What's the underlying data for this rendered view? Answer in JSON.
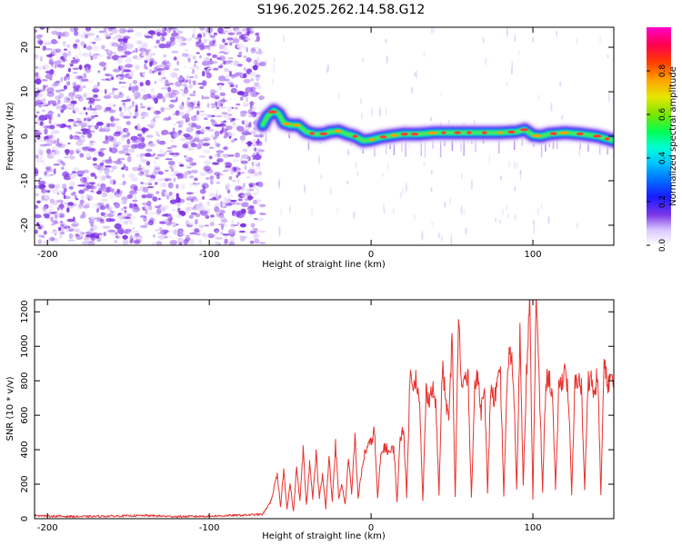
{
  "figure": {
    "title": "S196.2025.262.14.58.G12"
  },
  "chart_data": [
    {
      "type": "heatmap",
      "name": "spectrogram",
      "xlabel": "Height of straight line (km)",
      "ylabel": "Frequency (Hz)",
      "xlim": [
        -208,
        150
      ],
      "ylim": [
        -24.5,
        24.5
      ],
      "xticks": [
        -200,
        -100,
        0,
        100
      ],
      "yticks": [
        -20,
        -10,
        0,
        10,
        20
      ],
      "noise_region_km": [
        -208,
        -67
      ],
      "ridge": {
        "x": [
          -67,
          -64,
          -60,
          -57,
          -54,
          -50,
          -45,
          -40,
          -35,
          -30,
          -25,
          -20,
          -15,
          -10,
          -5,
          0,
          5,
          10,
          20,
          30,
          40,
          50,
          60,
          70,
          80,
          90,
          95,
          100,
          105,
          110,
          120,
          130,
          140,
          150
        ],
        "frequency_hz": [
          2.5,
          4.5,
          5.8,
          5.0,
          3.0,
          2.5,
          2.5,
          1.0,
          0.5,
          0.5,
          1.0,
          1.2,
          0.5,
          0.0,
          -1.0,
          -0.8,
          -0.3,
          0.0,
          0.5,
          0.5,
          0.8,
          0.8,
          0.8,
          0.8,
          0.8,
          1.0,
          1.5,
          0.2,
          0.0,
          0.5,
          0.8,
          0.5,
          0.0,
          -1.0
        ]
      },
      "colorbar": {
        "label": "Normalized spectral amplitude",
        "range": [
          0.0,
          1.0
        ],
        "ticks": [
          "0.0",
          "0.2",
          "0.4",
          "0.6",
          "0.8"
        ]
      }
    },
    {
      "type": "line",
      "name": "snr",
      "xlabel": "Height of straight line (km)",
      "ylabel": "SNR (10 * v/v)",
      "xlim": [
        -208,
        150
      ],
      "ylim": [
        0,
        1270
      ],
      "xticks": [
        -200,
        -100,
        0,
        100
      ],
      "yticks": [
        0,
        200,
        400,
        600,
        800,
        1000,
        1200
      ],
      "color": "#e8322e",
      "series": [
        {
          "name": "SNR",
          "x": [
            -208,
            -200,
            -180,
            -160,
            -140,
            -120,
            -100,
            -80,
            -67,
            -62,
            -58,
            -56,
            -54,
            -52,
            -50,
            -48,
            -46,
            -44,
            -42,
            -40,
            -38,
            -36,
            -34,
            -32,
            -30,
            -28,
            -26,
            -24,
            -22,
            -20,
            -18,
            -16,
            -14,
            -12,
            -10,
            -8,
            -6,
            -4,
            -2,
            0,
            2,
            4,
            6,
            8,
            10,
            12,
            14,
            16,
            18,
            20,
            22,
            24,
            26,
            28,
            30,
            32,
            34,
            36,
            38,
            40,
            42,
            44,
            46,
            48,
            50,
            52,
            54,
            56,
            58,
            60,
            62,
            64,
            66,
            68,
            70,
            72,
            74,
            76,
            78,
            80,
            82,
            84,
            86,
            88,
            90,
            92,
            94,
            96,
            98,
            100,
            102,
            104,
            106,
            108,
            110,
            112,
            114,
            116,
            118,
            120,
            122,
            124,
            126,
            128,
            130,
            132,
            134,
            136,
            138,
            140,
            142,
            144,
            146,
            148,
            150
          ],
          "y": [
            20,
            15,
            12,
            15,
            18,
            12,
            15,
            20,
            25,
            100,
            250,
            70,
            280,
            60,
            200,
            40,
            300,
            100,
            400,
            80,
            320,
            120,
            380,
            120,
            250,
            60,
            360,
            100,
            440,
            120,
            200,
            80,
            340,
            140,
            480,
            120,
            260,
            380,
            420,
            440,
            520,
            120,
            360,
            420,
            400,
            380,
            420,
            100,
            460,
            540,
            120,
            820,
            800,
            820,
            640,
            100,
            740,
            700,
            760,
            660,
            140,
            880,
            700,
            560,
            1060,
            120,
            1180,
            740,
            820,
            800,
            120,
            760,
            820,
            620,
            820,
            140,
            780,
            680,
            780,
            820,
            140,
            760,
            1000,
            800,
            160,
            1080,
            200,
            840,
            1240,
            120,
            1270,
            760,
            160,
            800,
            820,
            720,
            160,
            760,
            800,
            880,
            700,
            140,
            780,
            820,
            760,
            160,
            800,
            820,
            700,
            860,
            140,
            900,
            780,
            820,
            760
          ]
        }
      ]
    }
  ]
}
